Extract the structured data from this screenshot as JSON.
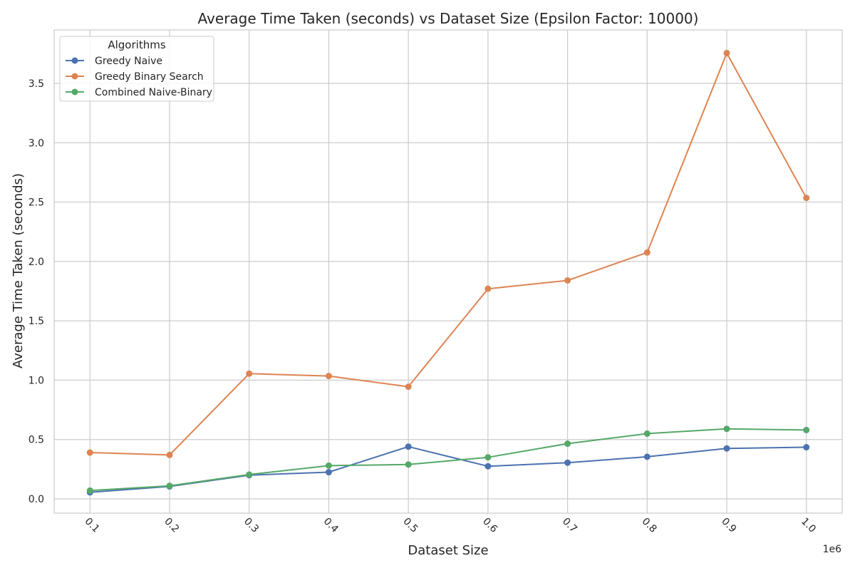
{
  "chart_data": {
    "type": "line",
    "title": "Average Time Taken (seconds) vs Dataset Size (Epsilon Factor: 10000)",
    "xlabel": "Dataset Size",
    "ylabel": "Average Time Taken (seconds)",
    "x_offset_text": "1e6",
    "x": [
      100000,
      200000,
      300000,
      400000,
      500000,
      600000,
      700000,
      800000,
      900000,
      1000000
    ],
    "x_tick_labels": [
      "0.1",
      "0.2",
      "0.3",
      "0.4",
      "0.5",
      "0.6",
      "0.7",
      "0.8",
      "0.9",
      "1.0"
    ],
    "y_ticks": [
      0.0,
      0.5,
      1.0,
      1.5,
      2.0,
      2.5,
      3.0,
      3.5
    ],
    "y_tick_labels": [
      "0.0",
      "0.5",
      "1.0",
      "1.5",
      "2.0",
      "2.5",
      "3.0",
      "3.5"
    ],
    "xlim": [
      55000,
      1045000
    ],
    "ylim": [
      -0.12,
      3.95
    ],
    "grid": true,
    "legend": {
      "title": "Algorithms",
      "placement": "top-left"
    },
    "series": [
      {
        "name": "Greedy Naive",
        "color": "#4c72b0",
        "values": [
          0.055,
          0.105,
          0.2,
          0.225,
          0.44,
          0.275,
          0.305,
          0.355,
          0.425,
          0.435
        ]
      },
      {
        "name": "Greedy Binary Search",
        "color": "#dd8452",
        "values": [
          0.39,
          0.37,
          1.055,
          1.035,
          0.945,
          1.77,
          1.84,
          2.075,
          3.755,
          2.535
        ]
      },
      {
        "name": "Combined Naive-Binary",
        "color": "#55a868",
        "values": [
          0.07,
          0.11,
          0.205,
          0.28,
          0.29,
          0.35,
          0.465,
          0.55,
          0.59,
          0.58
        ]
      }
    ]
  }
}
